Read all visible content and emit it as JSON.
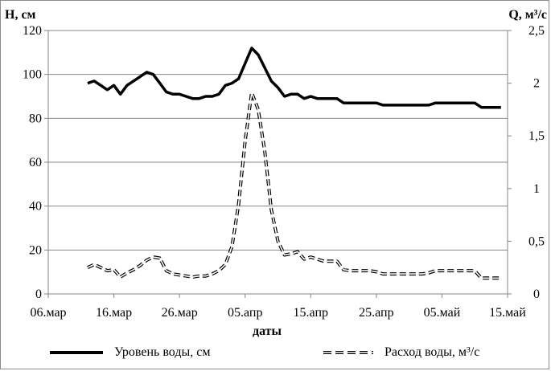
{
  "chart_data": {
    "type": "line",
    "xlabel": "даты",
    "x_ticks": [
      "06.мар",
      "16.мар",
      "26.мар",
      "05.апр",
      "15.апр",
      "25.апр",
      "05.май",
      "15.май"
    ],
    "x_range": [
      "2023-03-06",
      "2023-05-15"
    ],
    "y_left": {
      "label": "H, см",
      "lim": [
        0,
        120
      ],
      "ticks": [
        "0",
        "20",
        "40",
        "60",
        "80",
        "100",
        "120"
      ]
    },
    "y_right": {
      "label": "Q, м³/с",
      "lim": [
        0,
        2.5
      ],
      "ticks": [
        "0",
        "0,5",
        "1",
        "1,5",
        "2",
        "2,5"
      ]
    },
    "legend_position": "bottom",
    "series": [
      {
        "name": "Уровень воды, см",
        "axis": "left",
        "style": "solid",
        "color": "#000000",
        "points": [
          [
            "2023-03-12",
            96
          ],
          [
            "2023-03-13",
            97
          ],
          [
            "2023-03-14",
            95
          ],
          [
            "2023-03-15",
            93
          ],
          [
            "2023-03-16",
            95
          ],
          [
            "2023-03-17",
            91
          ],
          [
            "2023-03-18",
            95
          ],
          [
            "2023-03-19",
            97
          ],
          [
            "2023-03-20",
            99
          ],
          [
            "2023-03-21",
            101
          ],
          [
            "2023-03-22",
            100
          ],
          [
            "2023-03-23",
            96
          ],
          [
            "2023-03-24",
            92
          ],
          [
            "2023-03-25",
            91
          ],
          [
            "2023-03-26",
            91
          ],
          [
            "2023-03-27",
            90
          ],
          [
            "2023-03-28",
            89
          ],
          [
            "2023-03-29",
            89
          ],
          [
            "2023-03-30",
            90
          ],
          [
            "2023-03-31",
            90
          ],
          [
            "2023-04-01",
            91
          ],
          [
            "2023-04-02",
            95
          ],
          [
            "2023-04-03",
            96
          ],
          [
            "2023-04-04",
            98
          ],
          [
            "2023-04-05",
            105
          ],
          [
            "2023-04-06",
            112
          ],
          [
            "2023-04-07",
            109
          ],
          [
            "2023-04-08",
            103
          ],
          [
            "2023-04-09",
            97
          ],
          [
            "2023-04-10",
            94
          ],
          [
            "2023-04-11",
            90
          ],
          [
            "2023-04-12",
            91
          ],
          [
            "2023-04-13",
            91
          ],
          [
            "2023-04-14",
            89
          ],
          [
            "2023-04-15",
            90
          ],
          [
            "2023-04-16",
            89
          ],
          [
            "2023-04-17",
            89
          ],
          [
            "2023-04-18",
            89
          ],
          [
            "2023-04-19",
            89
          ],
          [
            "2023-04-20",
            87
          ],
          [
            "2023-04-21",
            87
          ],
          [
            "2023-04-22",
            87
          ],
          [
            "2023-04-23",
            87
          ],
          [
            "2023-04-24",
            87
          ],
          [
            "2023-04-25",
            87
          ],
          [
            "2023-04-26",
            86
          ],
          [
            "2023-04-27",
            86
          ],
          [
            "2023-04-28",
            86
          ],
          [
            "2023-04-29",
            86
          ],
          [
            "2023-04-30",
            86
          ],
          [
            "2023-05-01",
            86
          ],
          [
            "2023-05-02",
            86
          ],
          [
            "2023-05-03",
            86
          ],
          [
            "2023-05-04",
            87
          ],
          [
            "2023-05-05",
            87
          ],
          [
            "2023-05-06",
            87
          ],
          [
            "2023-05-07",
            87
          ],
          [
            "2023-05-08",
            87
          ],
          [
            "2023-05-09",
            87
          ],
          [
            "2023-05-10",
            87
          ],
          [
            "2023-05-11",
            85
          ],
          [
            "2023-05-12",
            85
          ],
          [
            "2023-05-13",
            85
          ],
          [
            "2023-05-14",
            85
          ]
        ]
      },
      {
        "name": "Расход воды, м³/с",
        "axis": "right",
        "style": "double-dashed",
        "color": "#000000",
        "points": [
          [
            "2023-03-12",
            0.25
          ],
          [
            "2023-03-13",
            0.28
          ],
          [
            "2023-03-14",
            0.25
          ],
          [
            "2023-03-15",
            0.22
          ],
          [
            "2023-03-16",
            0.23
          ],
          [
            "2023-03-17",
            0.16
          ],
          [
            "2023-03-18",
            0.2
          ],
          [
            "2023-03-19",
            0.23
          ],
          [
            "2023-03-20",
            0.27
          ],
          [
            "2023-03-21",
            0.32
          ],
          [
            "2023-03-22",
            0.35
          ],
          [
            "2023-03-23",
            0.34
          ],
          [
            "2023-03-24",
            0.22
          ],
          [
            "2023-03-25",
            0.19
          ],
          [
            "2023-03-26",
            0.18
          ],
          [
            "2023-03-27",
            0.17
          ],
          [
            "2023-03-28",
            0.16
          ],
          [
            "2023-03-29",
            0.17
          ],
          [
            "2023-03-30",
            0.17
          ],
          [
            "2023-03-31",
            0.19
          ],
          [
            "2023-04-01",
            0.22
          ],
          [
            "2023-04-02",
            0.28
          ],
          [
            "2023-04-03",
            0.45
          ],
          [
            "2023-04-04",
            0.85
          ],
          [
            "2023-04-05",
            1.45
          ],
          [
            "2023-04-06",
            1.91
          ],
          [
            "2023-04-07",
            1.75
          ],
          [
            "2023-04-08",
            1.35
          ],
          [
            "2023-04-09",
            0.8
          ],
          [
            "2023-04-10",
            0.5
          ],
          [
            "2023-04-11",
            0.37
          ],
          [
            "2023-04-12",
            0.38
          ],
          [
            "2023-04-13",
            0.4
          ],
          [
            "2023-04-14",
            0.33
          ],
          [
            "2023-04-15",
            0.35
          ],
          [
            "2023-04-16",
            0.33
          ],
          [
            "2023-04-17",
            0.31
          ],
          [
            "2023-04-18",
            0.31
          ],
          [
            "2023-04-19",
            0.31
          ],
          [
            "2023-04-20",
            0.23
          ],
          [
            "2023-04-21",
            0.22
          ],
          [
            "2023-04-22",
            0.22
          ],
          [
            "2023-04-23",
            0.22
          ],
          [
            "2023-04-24",
            0.22
          ],
          [
            "2023-04-25",
            0.21
          ],
          [
            "2023-04-26",
            0.19
          ],
          [
            "2023-04-27",
            0.19
          ],
          [
            "2023-04-28",
            0.19
          ],
          [
            "2023-04-29",
            0.19
          ],
          [
            "2023-04-30",
            0.19
          ],
          [
            "2023-05-01",
            0.19
          ],
          [
            "2023-05-02",
            0.19
          ],
          [
            "2023-05-03",
            0.2
          ],
          [
            "2023-05-04",
            0.22
          ],
          [
            "2023-05-05",
            0.22
          ],
          [
            "2023-05-06",
            0.22
          ],
          [
            "2023-05-07",
            0.22
          ],
          [
            "2023-05-08",
            0.22
          ],
          [
            "2023-05-09",
            0.22
          ],
          [
            "2023-05-10",
            0.22
          ],
          [
            "2023-05-11",
            0.15
          ],
          [
            "2023-05-12",
            0.15
          ],
          [
            "2023-05-13",
            0.15
          ],
          [
            "2023-05-14",
            0.15
          ]
        ]
      }
    ]
  }
}
